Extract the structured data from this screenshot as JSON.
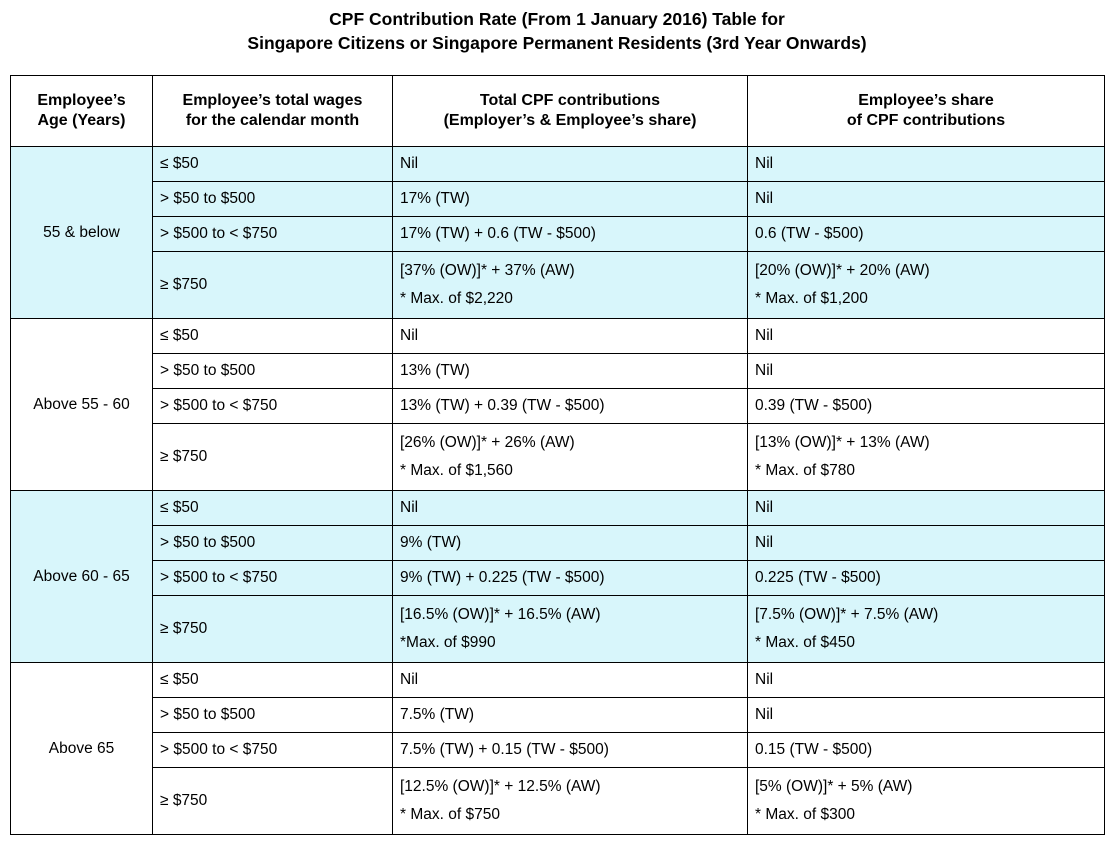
{
  "title": {
    "line1": "CPF Contribution Rate (From 1 January 2016) Table for",
    "line2": "Singapore Citizens or Singapore Permanent Residents (3rd Year Onwards)"
  },
  "table": {
    "headers": [
      {
        "line1": "Employee’s",
        "line2": "Age (Years)"
      },
      {
        "line1": "Employee’s total wages",
        "line2": "for the calendar month"
      },
      {
        "line1": "Total CPF contributions",
        "line2": "(Employer’s & Employee’s share)"
      },
      {
        "line1": "Employee’s share",
        "line2": "of CPF contributions"
      }
    ],
    "groups": [
      {
        "age": "55 & below",
        "shaded": true,
        "rows": [
          {
            "wage": "≤ $50",
            "total": [
              "Nil"
            ],
            "employee": [
              "Nil"
            ]
          },
          {
            "wage": "> $50 to $500",
            "total": [
              "17% (TW)"
            ],
            "employee": [
              "Nil"
            ]
          },
          {
            "wage": "> $500 to < $750",
            "total": [
              "17% (TW) + 0.6 (TW - $500)"
            ],
            "employee": [
              "0.6 (TW - $500)"
            ]
          },
          {
            "wage": "≥ $750",
            "total": [
              "[37% (OW)]* + 37% (AW)",
              "* Max. of $2,220"
            ],
            "employee": [
              "[20% (OW)]* + 20% (AW)",
              "* Max. of $1,200"
            ]
          }
        ]
      },
      {
        "age": "Above 55 - 60",
        "shaded": false,
        "rows": [
          {
            "wage": "≤ $50",
            "total": [
              "Nil"
            ],
            "employee": [
              "Nil"
            ]
          },
          {
            "wage": "> $50 to $500",
            "total": [
              "13% (TW)"
            ],
            "employee": [
              "Nil"
            ]
          },
          {
            "wage": "> $500 to < $750",
            "total": [
              "13% (TW) + 0.39 (TW - $500)"
            ],
            "employee": [
              "0.39 (TW - $500)"
            ]
          },
          {
            "wage": "≥ $750",
            "total": [
              "[26% (OW)]* + 26% (AW)",
              "* Max. of $1,560"
            ],
            "employee": [
              "[13% (OW)]* + 13% (AW)",
              "* Max. of $780"
            ]
          }
        ]
      },
      {
        "age": "Above 60 - 65",
        "shaded": true,
        "rows": [
          {
            "wage": "≤ $50",
            "total": [
              "Nil"
            ],
            "employee": [
              "Nil"
            ]
          },
          {
            "wage": "> $50 to $500",
            "total": [
              "9% (TW)"
            ],
            "employee": [
              "Nil"
            ]
          },
          {
            "wage": "> $500 to < $750",
            "total": [
              "9% (TW) + 0.225 (TW - $500)"
            ],
            "employee": [
              "0.225 (TW - $500)"
            ]
          },
          {
            "wage": "≥ $750",
            "total": [
              "[16.5% (OW)]* + 16.5% (AW)",
              "*Max. of $990"
            ],
            "employee": [
              "[7.5% (OW)]* + 7.5% (AW)",
              "* Max. of $450"
            ]
          }
        ]
      },
      {
        "age": "Above 65",
        "shaded": false,
        "rows": [
          {
            "wage": "≤ $50",
            "total": [
              "Nil"
            ],
            "employee": [
              "Nil"
            ]
          },
          {
            "wage": "> $50 to $500",
            "total": [
              "7.5% (TW)"
            ],
            "employee": [
              "Nil"
            ]
          },
          {
            "wage": "> $500 to < $750",
            "total": [
              "7.5% (TW) + 0.15 (TW - $500)"
            ],
            "employee": [
              "0.15 (TW - $500)"
            ]
          },
          {
            "wage": "≥ $750",
            "total": [
              "[12.5% (OW)]* + 12.5% (AW)",
              "* Max. of $750"
            ],
            "employee": [
              "[5% (OW)]* + 5% (AW)",
              "* Max. of $300"
            ]
          }
        ]
      }
    ]
  },
  "colors": {
    "shaded_row": "#d8f6fb",
    "border": "#000000"
  }
}
